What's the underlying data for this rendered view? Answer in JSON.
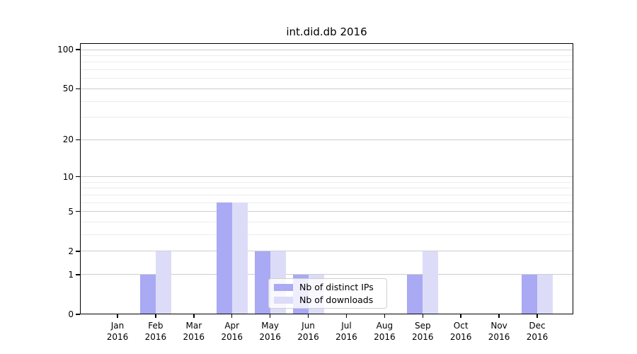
{
  "chart_data": {
    "type": "bar",
    "title": "int.did.db 2016",
    "categories": [
      "Jan",
      "Feb",
      "Mar",
      "Apr",
      "May",
      "Jun",
      "Jul",
      "Aug",
      "Sep",
      "Oct",
      "Nov",
      "Dec"
    ],
    "year_label": "2016",
    "series": [
      {
        "name": "Nb of distinct IPs",
        "color": "#a9a9f4",
        "values": [
          0,
          1,
          0,
          6,
          2,
          1,
          0,
          0,
          1,
          0,
          0,
          1
        ]
      },
      {
        "name": "Nb of downloads",
        "color": "#dcdcf9",
        "values": [
          0,
          2,
          0,
          6,
          2,
          1,
          0,
          0,
          2,
          0,
          0,
          1
        ]
      }
    ],
    "y_axis": {
      "scale": "log10(1+x)",
      "ticks": [
        0,
        1,
        2,
        5,
        10,
        20,
        50,
        100
      ],
      "minor_ticks": [
        3,
        4,
        6,
        7,
        8,
        9,
        30,
        40,
        60,
        70,
        80,
        90
      ],
      "range": [
        0,
        100
      ]
    },
    "legend": {
      "entries": [
        "Nb of distinct IPs",
        "Nb of downloads"
      ],
      "position": "lower center-right, overlapping Jun bars"
    },
    "grid": true,
    "colors": {
      "major_grid": "#cdcdcd",
      "minor_grid": "#ececec",
      "spine": "#000000"
    }
  }
}
